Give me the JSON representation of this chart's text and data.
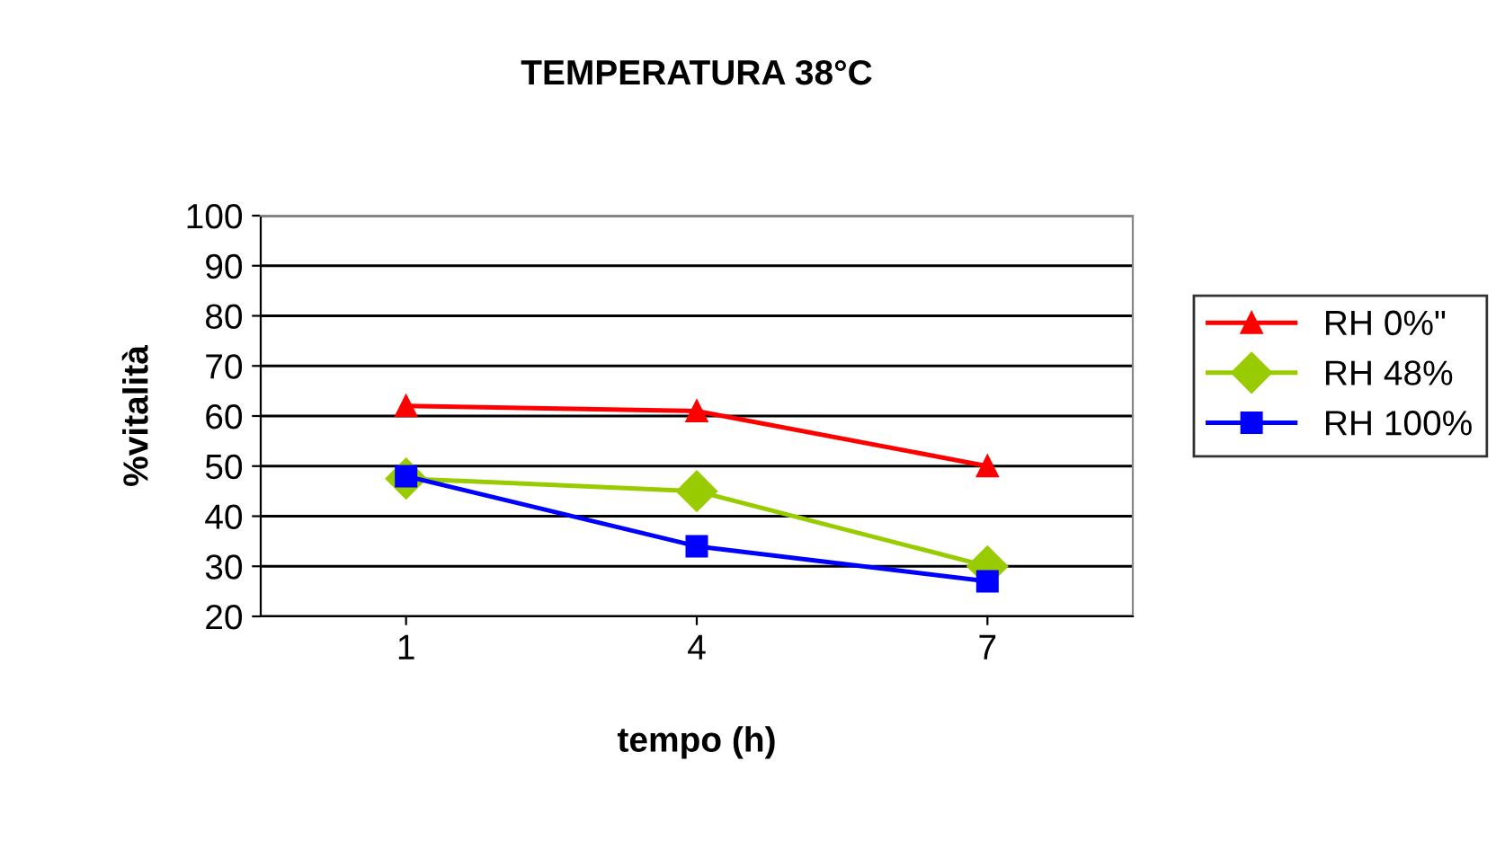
{
  "chart_data": {
    "type": "line",
    "title": "TEMPERATURA 38°C",
    "xlabel": "tempo (h)",
    "ylabel": "%vitalità",
    "categories": [
      "1",
      "4",
      "7"
    ],
    "series": [
      {
        "name": "RH 0%\"",
        "color": "#ff0000",
        "marker": "triangle",
        "values": [
          62,
          61,
          50
        ]
      },
      {
        "name": "RH 48%",
        "color": "#99cc00",
        "marker": "diamond",
        "values": [
          47.5,
          45,
          30
        ]
      },
      {
        "name": "RH 100%",
        "color": "#0000ff",
        "marker": "square",
        "values": [
          48,
          34,
          27
        ]
      }
    ],
    "ylim": [
      20,
      100
    ],
    "yticks": [
      20,
      30,
      40,
      50,
      60,
      70,
      80,
      90,
      100
    ],
    "grid": "y",
    "legend": "right",
    "line_style": "solid"
  }
}
